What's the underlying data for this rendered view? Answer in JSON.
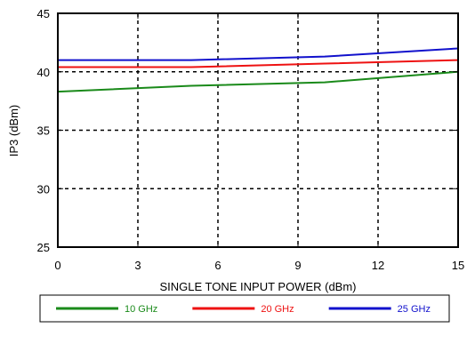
{
  "chart_data": {
    "type": "line",
    "title": "",
    "xlabel": "SINGLE TONE INPUT POWER (dBm)",
    "ylabel": "IP3 (dBm)",
    "xlim": [
      0,
      15
    ],
    "ylim": [
      25,
      45
    ],
    "xticks": [
      0,
      3,
      6,
      9,
      12,
      15
    ],
    "yticks": [
      25,
      30,
      35,
      40,
      45
    ],
    "x_tick_labels": [
      "0",
      "3",
      "6",
      "9",
      "12",
      "15"
    ],
    "y_tick_labels": [
      "25",
      "30",
      "35",
      "40",
      "45"
    ],
    "grid": true,
    "grid_style": "dotted",
    "legend_position": "bottom",
    "series": [
      {
        "name": "10 GHz",
        "color": "#1a8a1a",
        "x": [
          0,
          5,
          10,
          15
        ],
        "y": [
          38.3,
          38.8,
          39.1,
          40.0
        ]
      },
      {
        "name": "20 GHz",
        "color": "#ee1111",
        "x": [
          0,
          5,
          10,
          15
        ],
        "y": [
          40.4,
          40.4,
          40.7,
          41.0
        ]
      },
      {
        "name": "25 GHz",
        "color": "#1111cc",
        "x": [
          0,
          5,
          10,
          15
        ],
        "y": [
          41.0,
          41.0,
          41.3,
          42.0
        ]
      }
    ]
  }
}
